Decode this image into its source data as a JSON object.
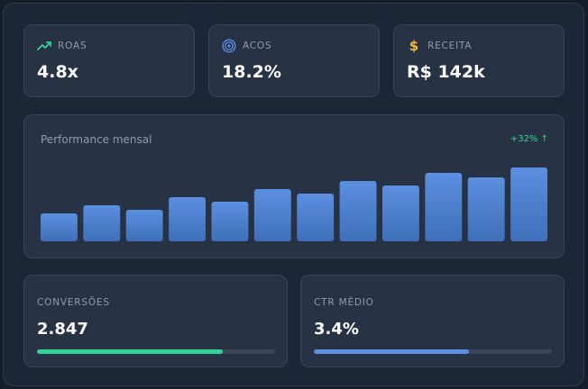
{
  "kpis": [
    {
      "label": "ROAS",
      "value": "4.8x",
      "icon": "trending-up-icon",
      "icon_color": "#34d399"
    },
    {
      "label": "ACOS",
      "value": "18.2%",
      "icon": "target-icon",
      "icon_color": "#5b8fe0"
    },
    {
      "label": "RECEITA",
      "value": "R$ 142k",
      "icon": "dollar-icon",
      "icon_color": "#f5b83d"
    }
  ],
  "performance": {
    "title": "Performance mensal",
    "badge": "+32% ↑",
    "badge_color": "#34d399"
  },
  "chart_data": {
    "type": "bar",
    "title": "Performance mensal",
    "values": [
      31,
      40,
      35,
      49,
      44,
      58,
      53,
      67,
      62,
      76,
      71,
      82
    ],
    "ylim": [
      0,
      100
    ],
    "bar_color_top": "#5b8fe0",
    "bar_color_bottom": "#3f6fb8"
  },
  "bottom": {
    "conversions": {
      "label": "CONVERSÕES",
      "value": "2.847",
      "progress": 0.78,
      "color": "#34d399"
    },
    "ctr": {
      "label": "CTR MÉDIO",
      "value": "3.4%",
      "progress": 0.65,
      "color": "#5b8fe0"
    }
  },
  "colors": {
    "background": "#141d29",
    "panel": "#1b2636",
    "card": "#273344"
  }
}
